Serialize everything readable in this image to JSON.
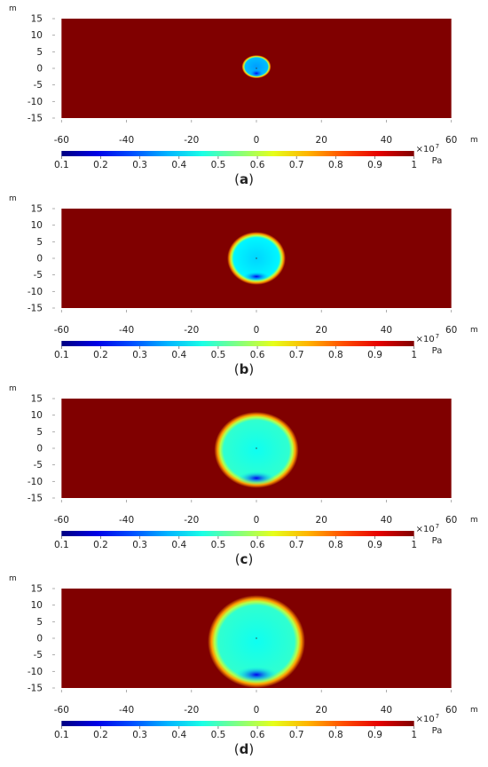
{
  "chart_data": [
    {
      "type": "heatmap",
      "caption_label": "a",
      "x_unit": "m",
      "y_unit": "m",
      "xlim": [
        -62,
        62
      ],
      "ylim": [
        -15,
        15
      ],
      "x_ticks": [
        "-60",
        "-40",
        "-20",
        "0",
        "20",
        "40",
        "60"
      ],
      "y_ticks": [
        "15",
        "10",
        "5",
        "0",
        "-5",
        "-10",
        "-15"
      ],
      "x_tick_values": [
        -60,
        -40,
        -20,
        0,
        20,
        40,
        60
      ],
      "y_tick_values": [
        15,
        10,
        5,
        0,
        -5,
        -10,
        -15
      ],
      "domain_x": [
        -60,
        60
      ],
      "domain_y": [
        -15,
        15
      ],
      "field_max": 1.0,
      "low_pressure_zone": {
        "cx": 0,
        "cy": 0.5,
        "rx": 4.5,
        "ry": 3.5,
        "inner": 0.35,
        "dark_spot_cy": -1.5,
        "dark_spot_value": 0.2
      },
      "colorbar": {
        "min": 0.1,
        "max": 1,
        "ticks": [
          "0.1",
          "0.2",
          "0.3",
          "0.4",
          "0.5",
          "0.6",
          "0.7",
          "0.8",
          "0.9",
          "1"
        ],
        "tick_values": [
          0.1,
          0.2,
          0.3,
          0.4,
          0.5,
          0.6,
          0.7,
          0.8,
          0.9,
          1.0
        ],
        "multiplier": "×10",
        "exponent": "7",
        "unit": "Pa"
      }
    },
    {
      "type": "heatmap",
      "caption_label": "b",
      "x_unit": "m",
      "y_unit": "m",
      "xlim": [
        -62,
        62
      ],
      "ylim": [
        -15,
        15
      ],
      "x_ticks": [
        "-60",
        "-40",
        "-20",
        "0",
        "20",
        "40",
        "60"
      ],
      "y_ticks": [
        "15",
        "10",
        "5",
        "0",
        "-5",
        "-10",
        "-15"
      ],
      "x_tick_values": [
        -60,
        -40,
        -20,
        0,
        20,
        40,
        60
      ],
      "y_tick_values": [
        15,
        10,
        5,
        0,
        -5,
        -10,
        -15
      ],
      "domain_x": [
        -60,
        60
      ],
      "domain_y": [
        -15,
        15
      ],
      "field_max": 1.0,
      "low_pressure_zone": {
        "cx": 0,
        "cy": 0,
        "rx": 9,
        "ry": 8,
        "inner": 0.4,
        "dark_spot_cy": -5.5,
        "dark_spot_value": 0.2
      },
      "colorbar": {
        "min": 0.1,
        "max": 1,
        "ticks": [
          "0.1",
          "0.2",
          "0.3",
          "0.4",
          "0.5",
          "0.6",
          "0.7",
          "0.8",
          "0.9",
          "1"
        ],
        "tick_values": [
          0.1,
          0.2,
          0.3,
          0.4,
          0.5,
          0.6,
          0.7,
          0.8,
          0.9,
          1.0
        ],
        "multiplier": "×10",
        "exponent": "7",
        "unit": "Pa"
      }
    },
    {
      "type": "heatmap",
      "caption_label": "c",
      "x_unit": "m",
      "y_unit": "m",
      "xlim": [
        -62,
        62
      ],
      "ylim": [
        -15,
        15
      ],
      "x_ticks": [
        "-60",
        "-40",
        "-20",
        "0",
        "20",
        "40",
        "60"
      ],
      "y_ticks": [
        "15",
        "10",
        "5",
        "0",
        "-5",
        "-10",
        "-15"
      ],
      "x_tick_values": [
        -60,
        -40,
        -20,
        0,
        20,
        40,
        60
      ],
      "y_tick_values": [
        15,
        10,
        5,
        0,
        -5,
        -10,
        -15
      ],
      "domain_x": [
        -60,
        60
      ],
      "domain_y": [
        -15,
        15
      ],
      "field_max": 1.0,
      "low_pressure_zone": {
        "cx": 0,
        "cy": -0.5,
        "rx": 13,
        "ry": 11.5,
        "inner": 0.45,
        "dark_spot_cy": -9,
        "dark_spot_value": 0.2
      },
      "colorbar": {
        "min": 0.1,
        "max": 1,
        "ticks": [
          "0.1",
          "0.2",
          "0.3",
          "0.4",
          "0.5",
          "0.6",
          "0.7",
          "0.8",
          "0.9",
          "1"
        ],
        "tick_values": [
          0.1,
          0.2,
          0.3,
          0.4,
          0.5,
          0.6,
          0.7,
          0.8,
          0.9,
          1.0
        ],
        "multiplier": "×10",
        "exponent": "7",
        "unit": "Pa"
      }
    },
    {
      "type": "heatmap",
      "caption_label": "d",
      "x_unit": "m",
      "y_unit": "m",
      "xlim": [
        -62,
        62
      ],
      "ylim": [
        -15,
        15
      ],
      "x_ticks": [
        "-60",
        "-40",
        "-20",
        "0",
        "20",
        "40",
        "60"
      ],
      "y_ticks": [
        "15",
        "10",
        "5",
        "0",
        "-5",
        "-10",
        "-15"
      ],
      "x_tick_values": [
        -60,
        -40,
        -20,
        0,
        20,
        40,
        60
      ],
      "y_tick_values": [
        15,
        10,
        5,
        0,
        -5,
        -10,
        -15
      ],
      "domain_x": [
        -60,
        60
      ],
      "domain_y": [
        -15,
        15
      ],
      "field_max": 1.0,
      "low_pressure_zone": {
        "cx": 0,
        "cy": -1,
        "rx": 15,
        "ry": 14,
        "inner": 0.45,
        "dark_spot_cy": -11,
        "dark_spot_value": 0.2
      },
      "colorbar": {
        "min": 0.1,
        "max": 1,
        "ticks": [
          "0.1",
          "0.2",
          "0.3",
          "0.4",
          "0.5",
          "0.6",
          "0.7",
          "0.8",
          "0.9",
          "1"
        ],
        "tick_values": [
          0.1,
          0.2,
          0.3,
          0.4,
          0.5,
          0.6,
          0.7,
          0.8,
          0.9,
          1.0
        ],
        "multiplier": "×10",
        "exponent": "7",
        "unit": "Pa"
      }
    }
  ]
}
